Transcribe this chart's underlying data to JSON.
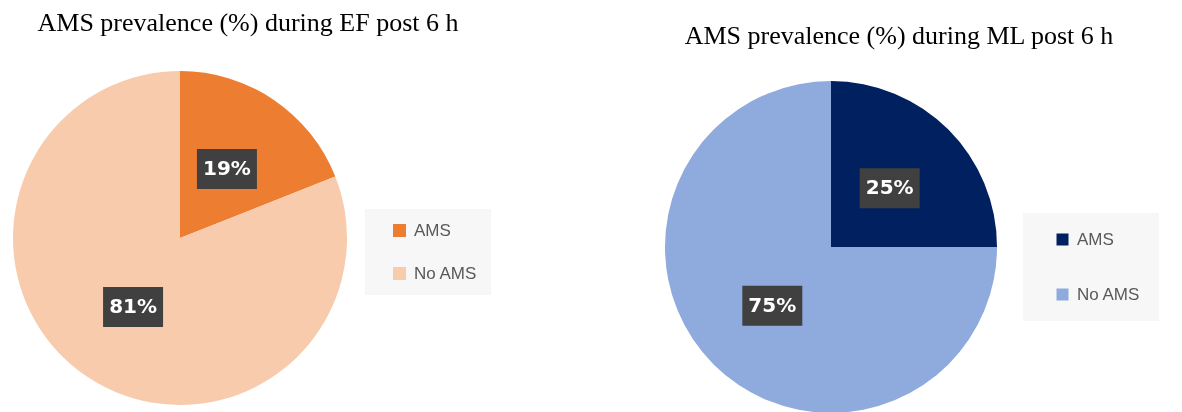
{
  "chart_data": [
    {
      "type": "pie",
      "title": "AMS prevalence (%) during EF post 6 h",
      "categories": [
        "AMS",
        "No AMS"
      ],
      "values": [
        19,
        81
      ],
      "colors": [
        "#ed7d31",
        "#f8cbad"
      ],
      "value_labels": [
        "19%",
        "81%"
      ],
      "legend": "right"
    },
    {
      "type": "pie",
      "title": "AMS prevalence (%) during ML post 6 h",
      "categories": [
        "AMS",
        "No AMS"
      ],
      "values": [
        25,
        75
      ],
      "colors": [
        "#002060",
        "#8faadc"
      ],
      "value_labels": [
        "25%",
        "75%"
      ],
      "legend": "right"
    }
  ]
}
